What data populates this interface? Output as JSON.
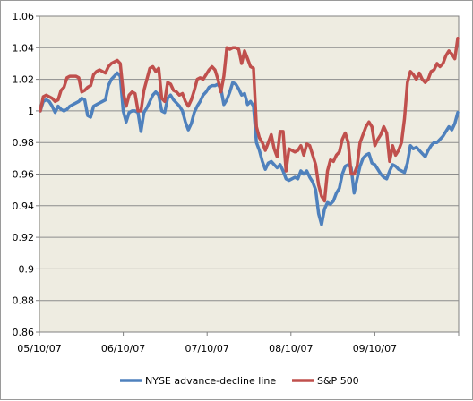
{
  "chart_data": {
    "type": "line",
    "title": "",
    "xlabel": "",
    "ylabel": "",
    "ylim": [
      0.86,
      1.06
    ],
    "yticks": [
      "0.86",
      "0.88",
      "0.9",
      "0.92",
      "0.94",
      "0.96",
      "0.98",
      "1",
      "1.02",
      "1.04",
      "1.06"
    ],
    "xticks": [
      "05/10/07",
      "06/10/07",
      "07/10/07",
      "08/10/07",
      "09/10/07"
    ],
    "grid": "horizontal",
    "plot_background": "#eeece1",
    "legend_position": "bottom",
    "series": [
      {
        "name": "NYSE advance-decline line",
        "color": "#4f81bd",
        "values": [
          1.0,
          1.006,
          1.007,
          1.006,
          1.003,
          0.999,
          1.003,
          1.001,
          1.0,
          1.001,
          1.003,
          1.004,
          1.005,
          1.006,
          1.008,
          1.007,
          0.997,
          0.996,
          1.003,
          1.004,
          1.005,
          1.006,
          1.007,
          1.016,
          1.02,
          1.022,
          1.024,
          1.022,
          1.0,
          0.993,
          0.999,
          1.0,
          1.0,
          0.999,
          0.987,
          0.999,
          1.002,
          1.006,
          1.01,
          1.012,
          1.01,
          1.0,
          0.999,
          1.008,
          1.01,
          1.007,
          1.005,
          1.003,
          1.0,
          0.993,
          0.988,
          0.992,
          0.999,
          1.003,
          1.006,
          1.01,
          1.012,
          1.015,
          1.016,
          1.016,
          1.017,
          1.014,
          1.004,
          1.007,
          1.012,
          1.018,
          1.017,
          1.014,
          1.01,
          1.011,
          1.004,
          1.006,
          1.003,
          0.98,
          0.975,
          0.968,
          0.963,
          0.967,
          0.968,
          0.966,
          0.964,
          0.966,
          0.962,
          0.957,
          0.956,
          0.957,
          0.958,
          0.957,
          0.962,
          0.96,
          0.962,
          0.958,
          0.955,
          0.95,
          0.935,
          0.928,
          0.938,
          0.942,
          0.941,
          0.943,
          0.948,
          0.951,
          0.96,
          0.965,
          0.966,
          0.964,
          0.948,
          0.957,
          0.965,
          0.97,
          0.972,
          0.973,
          0.967,
          0.966,
          0.963,
          0.96,
          0.958,
          0.957,
          0.962,
          0.966,
          0.965,
          0.963,
          0.962,
          0.961,
          0.967,
          0.978,
          0.976,
          0.977,
          0.975,
          0.973,
          0.971,
          0.975,
          0.978,
          0.98,
          0.98,
          0.982,
          0.984,
          0.987,
          0.99,
          0.988,
          0.992,
          0.999
        ]
      },
      {
        "name": "S&P 500",
        "color": "#c0504d",
        "values": [
          1.0,
          1.009,
          1.01,
          1.009,
          1.008,
          1.006,
          1.007,
          1.013,
          1.015,
          1.021,
          1.022,
          1.022,
          1.022,
          1.021,
          1.012,
          1.013,
          1.015,
          1.016,
          1.023,
          1.025,
          1.026,
          1.025,
          1.024,
          1.028,
          1.03,
          1.031,
          1.032,
          1.03,
          1.012,
          1.003,
          1.01,
          1.012,
          1.011,
          1.0,
          1.0,
          1.013,
          1.02,
          1.027,
          1.028,
          1.025,
          1.027,
          1.008,
          1.006,
          1.018,
          1.017,
          1.013,
          1.012,
          1.01,
          1.011,
          1.006,
          1.003,
          1.007,
          1.013,
          1.02,
          1.021,
          1.02,
          1.023,
          1.026,
          1.028,
          1.026,
          1.02,
          1.012,
          1.022,
          1.04,
          1.039,
          1.04,
          1.04,
          1.039,
          1.03,
          1.038,
          1.033,
          1.028,
          1.027,
          0.99,
          0.983,
          0.98,
          0.975,
          0.98,
          0.985,
          0.976,
          0.971,
          0.987,
          0.987,
          0.962,
          0.976,
          0.975,
          0.974,
          0.975,
          0.978,
          0.972,
          0.979,
          0.978,
          0.972,
          0.966,
          0.953,
          0.946,
          0.943,
          0.962,
          0.969,
          0.968,
          0.972,
          0.974,
          0.982,
          0.986,
          0.98,
          0.96,
          0.96,
          0.965,
          0.98,
          0.985,
          0.99,
          0.993,
          0.99,
          0.978,
          0.982,
          0.985,
          0.99,
          0.986,
          0.968,
          0.978,
          0.972,
          0.975,
          0.98,
          0.995,
          1.018,
          1.025,
          1.023,
          1.02,
          1.024,
          1.02,
          1.018,
          1.02,
          1.025,
          1.026,
          1.03,
          1.028,
          1.03,
          1.035,
          1.038,
          1.036,
          1.033,
          1.046
        ]
      }
    ]
  }
}
